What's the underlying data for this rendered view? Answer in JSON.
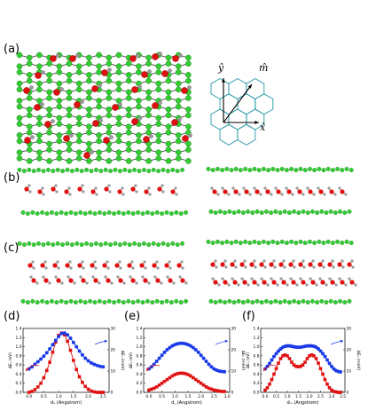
{
  "panel_labels": {
    "a": "(a)",
    "b": "(b)",
    "c": "(c)",
    "d": "(d)",
    "e": "(e)",
    "f": "(f)"
  },
  "axes_inset": {
    "y": "ŷ",
    "m": "m̂",
    "x": "x̂"
  },
  "colors": {
    "carbon": "#33cc33",
    "oxygen": "#e01010",
    "hydrogen": "#9a9a9a",
    "hex": "#2a9aa8",
    "red_series": "#e01010",
    "blue_series": "#1a3ae8"
  },
  "chart_data": [
    {
      "type": "line",
      "panel": "(d)",
      "xlabel": "dₓ (Angstrom)",
      "ylabel_left": "ΔEₙ (eV)",
      "ylabel_right": "ΔEₙ (meV)",
      "xlim": [
        -0.2,
        2.7
      ],
      "ylim_left": [
        0,
        1.4
      ],
      "ylim_right": [
        0,
        30
      ],
      "x_ticks": [
        "0.0",
        "0.5",
        "1.0",
        "1.5",
        "2.0",
        "2.5"
      ],
      "y_ticks_left": [
        "0.0",
        "0.2",
        "0.4",
        "0.6",
        "0.8",
        "1.0",
        "1.2",
        "1.4"
      ],
      "y_ticks_right": [
        "0",
        "10",
        "20",
        "30"
      ],
      "x": [
        0.0,
        0.1,
        0.2,
        0.3,
        0.4,
        0.5,
        0.6,
        0.7,
        0.8,
        0.9,
        1.0,
        1.1,
        1.2,
        1.3,
        1.4,
        1.5,
        1.6,
        1.7,
        1.8,
        1.9,
        2.0,
        2.1,
        2.2,
        2.3,
        2.4,
        2.5
      ],
      "series": [
        {
          "axis": "left",
          "values": [
            0.0,
            0.02,
            0.06,
            0.12,
            0.2,
            0.32,
            0.48,
            0.66,
            0.88,
            1.1,
            1.25,
            1.3,
            1.26,
            1.12,
            0.92,
            0.7,
            0.5,
            0.34,
            0.22,
            0.13,
            0.07,
            0.03,
            0.01,
            0.0,
            0.0,
            0.0
          ]
        },
        {
          "axis": "right",
          "values": [
            11.0,
            12.0,
            13.2,
            14.4,
            15.6,
            17.0,
            18.6,
            20.4,
            22.4,
            24.4,
            26.2,
            27.6,
            27.8,
            27.0,
            25.4,
            23.4,
            21.4,
            19.4,
            17.6,
            16.0,
            14.8,
            13.8,
            13.1,
            12.6,
            12.2,
            12.0
          ]
        }
      ]
    },
    {
      "type": "line",
      "panel": "(e)",
      "xlabel": "d꜀ (Angstrom)",
      "ylabel_left": "ΔEₙ (eV)",
      "ylabel_right": "ΔEₙ (meV)",
      "xlim": [
        -0.2,
        3.1
      ],
      "ylim_left": [
        0,
        1.4
      ],
      "ylim_right": [
        0,
        30
      ],
      "x_ticks": [
        "0.0",
        "0.5",
        "1.0",
        "1.5",
        "2.0",
        "2.5",
        "3.0"
      ],
      "y_ticks_left": [
        "0.0",
        "0.2",
        "0.4",
        "0.6",
        "0.8",
        "1.0",
        "1.2",
        "1.4"
      ],
      "y_ticks_right": [
        "0",
        "10",
        "20",
        "30"
      ],
      "x": [
        0.0,
        0.1,
        0.2,
        0.3,
        0.4,
        0.5,
        0.6,
        0.7,
        0.8,
        0.9,
        1.0,
        1.1,
        1.2,
        1.3,
        1.4,
        1.5,
        1.6,
        1.7,
        1.8,
        1.9,
        2.0,
        2.1,
        2.2,
        2.3,
        2.4,
        2.5,
        2.6,
        2.7,
        2.8,
        2.9
      ],
      "series": [
        {
          "axis": "left",
          "values": [
            0.05,
            0.07,
            0.09,
            0.12,
            0.16,
            0.2,
            0.24,
            0.28,
            0.32,
            0.36,
            0.39,
            0.41,
            0.42,
            0.42,
            0.41,
            0.39,
            0.36,
            0.32,
            0.28,
            0.24,
            0.2,
            0.16,
            0.12,
            0.09,
            0.07,
            0.05,
            0.04,
            0.03,
            0.02,
            0.02
          ]
        },
        {
          "axis": "right",
          "values": [
            11.0,
            12.0,
            13.2,
            14.6,
            16.0,
            17.4,
            18.8,
            20.0,
            21.0,
            21.8,
            22.4,
            22.8,
            23.0,
            23.0,
            22.8,
            22.4,
            21.8,
            21.0,
            20.0,
            18.8,
            17.4,
            16.0,
            14.6,
            13.2,
            12.0,
            11.0,
            10.4,
            10.0,
            9.8,
            9.7
          ]
        }
      ]
    },
    {
      "type": "line",
      "panel": "(f)",
      "xlabel": "dₘ (Angstrom)",
      "ylabel_left": "ΔEₙ (eV)",
      "ylabel_right": "ΔEₙ (meV)",
      "xlim": [
        -0.2,
        3.6
      ],
      "ylim_left": [
        0,
        1.4
      ],
      "ylim_right": [
        0,
        30
      ],
      "x_ticks": [
        "0.0",
        "0.5",
        "1.0",
        "1.5",
        "2.0",
        "2.5",
        "3.0",
        "3.5"
      ],
      "y_ticks_left": [
        "0.0",
        "0.2",
        "0.4",
        "0.6",
        "0.8",
        "1.0",
        "1.2",
        "1.4"
      ],
      "y_ticks_right": [
        "0",
        "10",
        "20",
        "30"
      ],
      "x": [
        0.0,
        0.1,
        0.2,
        0.3,
        0.4,
        0.5,
        0.6,
        0.7,
        0.8,
        0.9,
        1.0,
        1.1,
        1.2,
        1.3,
        1.4,
        1.5,
        1.6,
        1.7,
        1.8,
        1.9,
        2.0,
        2.1,
        2.2,
        2.3,
        2.4,
        2.5,
        2.6,
        2.7,
        2.8,
        2.9,
        3.0,
        3.1,
        3.2,
        3.3,
        3.4
      ],
      "series": [
        {
          "axis": "left",
          "values": [
            0.05,
            0.1,
            0.18,
            0.28,
            0.4,
            0.52,
            0.64,
            0.74,
            0.8,
            0.82,
            0.8,
            0.74,
            0.66,
            0.6,
            0.57,
            0.56,
            0.57,
            0.6,
            0.66,
            0.74,
            0.8,
            0.82,
            0.8,
            0.74,
            0.64,
            0.52,
            0.4,
            0.28,
            0.18,
            0.1,
            0.05,
            0.02,
            0.01,
            0.0,
            0.0
          ]
        },
        {
          "axis": "right",
          "values": [
            11.0,
            12.2,
            13.6,
            15.2,
            16.8,
            18.2,
            19.4,
            20.4,
            21.2,
            21.6,
            21.8,
            21.8,
            21.6,
            21.4,
            21.2,
            21.2,
            21.2,
            21.4,
            21.6,
            21.8,
            21.8,
            21.8,
            21.6,
            21.2,
            20.4,
            19.4,
            18.2,
            16.8,
            15.2,
            13.6,
            12.2,
            11.0,
            10.2,
            9.8,
            9.6
          ]
        }
      ]
    }
  ]
}
